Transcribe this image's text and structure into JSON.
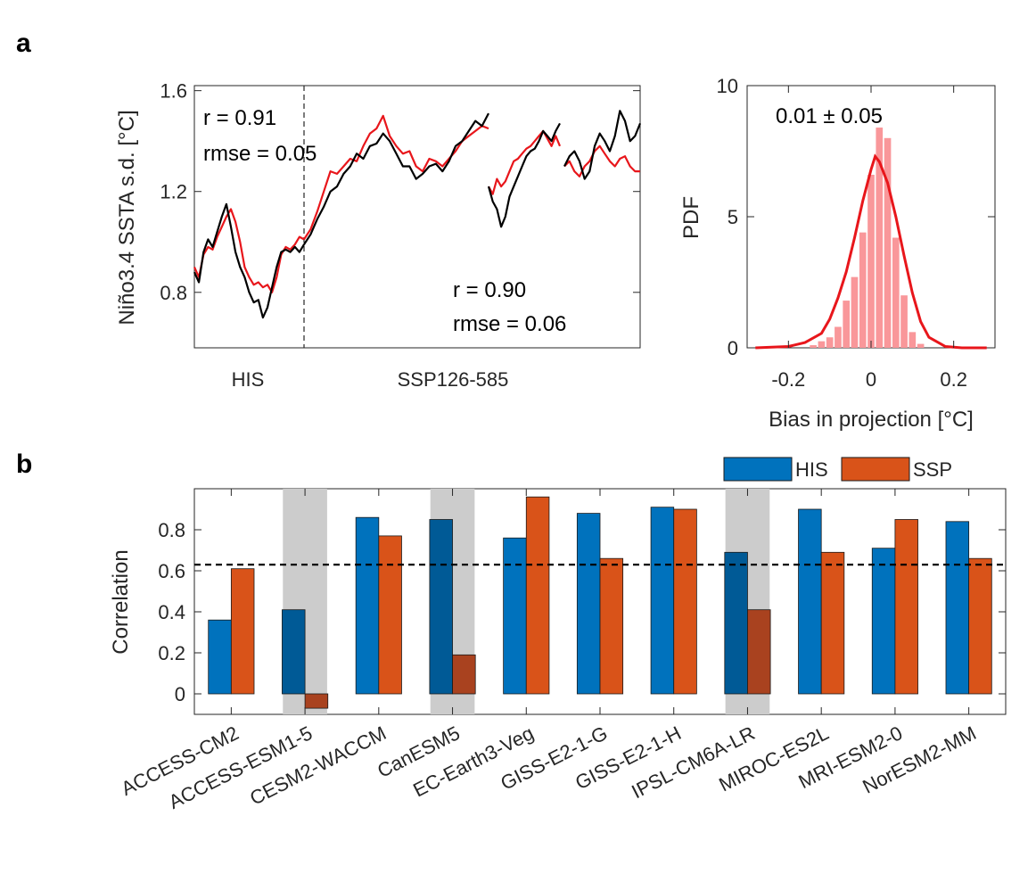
{
  "panel_a_label": "a",
  "panel_b_label": "b",
  "chart_data": [
    {
      "type": "line",
      "panel": "a-left",
      "ylabel": "Niño3.4 SSTA s.d. [°C]",
      "ylim": [
        0.58,
        1.62
      ],
      "yticks": [
        "0.8",
        "1.2",
        "1.6"
      ],
      "xcategory_labels": [
        "HIS",
        "SSP126-585"
      ],
      "annotations": {
        "his_r": "r = 0.91",
        "his_rmse": "rmse = 0.05",
        "ssp_r": "r = 0.90",
        "ssp_rmse": "rmse = 0.06"
      },
      "series": [
        {
          "color": "#e8161b",
          "segments": [
            [
              0.9,
              0.86,
              0.95,
              0.98,
              0.97,
              1.02,
              1.06,
              1.1,
              1.13,
              1.08,
              1.0,
              0.9,
              0.86,
              0.83,
              0.84,
              0.82,
              0.83,
              0.8,
              0.86,
              0.95,
              0.98,
              0.97,
              0.99,
              1.02,
              1.01
            ],
            [
              1.01,
              1.05,
              1.12,
              1.2,
              1.28,
              1.27,
              1.3,
              1.33,
              1.32,
              1.38,
              1.43,
              1.45,
              1.5,
              1.42,
              1.38,
              1.35,
              1.36,
              1.3,
              1.28,
              1.33,
              1.32,
              1.3,
              1.33,
              1.36,
              1.4,
              1.42,
              1.44,
              1.46,
              1.45
            ],
            [
              1.22,
              1.19,
              1.25,
              1.22,
              1.24,
              1.28,
              1.32,
              1.33,
              1.35,
              1.37,
              1.38,
              1.4,
              1.42,
              1.44,
              1.41,
              1.38,
              1.42,
              1.38
            ],
            [
              1.3,
              1.32,
              1.28,
              1.26,
              1.3,
              1.32,
              1.36,
              1.38,
              1.35,
              1.32,
              1.3,
              1.33,
              1.34,
              1.3,
              1.28,
              1.28
            ]
          ]
        },
        {
          "color": "#000000",
          "segments": [
            [
              0.88,
              0.84,
              0.96,
              1.01,
              0.98,
              1.04,
              1.1,
              1.15,
              1.06,
              0.96,
              0.9,
              0.86,
              0.8,
              0.76,
              0.77,
              0.7,
              0.74,
              0.82,
              0.9,
              0.96,
              0.97,
              0.96,
              0.98,
              0.96,
              0.99
            ],
            [
              0.99,
              1.03,
              1.09,
              1.14,
              1.2,
              1.22,
              1.27,
              1.3,
              1.35,
              1.33,
              1.38,
              1.39,
              1.43,
              1.4,
              1.35,
              1.3,
              1.3,
              1.25,
              1.27,
              1.3,
              1.31,
              1.28,
              1.32,
              1.38,
              1.4,
              1.44,
              1.48,
              1.46,
              1.51
            ],
            [
              1.22,
              1.16,
              1.13,
              1.06,
              1.1,
              1.18,
              1.22,
              1.26,
              1.3,
              1.34,
              1.36,
              1.37,
              1.4,
              1.44,
              1.42,
              1.4,
              1.44,
              1.47
            ],
            [
              1.3,
              1.34,
              1.36,
              1.32,
              1.25,
              1.28,
              1.38,
              1.43,
              1.4,
              1.36,
              1.42,
              1.52,
              1.48,
              1.4,
              1.42,
              1.47
            ]
          ]
        }
      ]
    },
    {
      "type": "bar",
      "panel": "a-right",
      "title": "0.01 ± 0.05",
      "xlabel": "Bias in projection [°C]",
      "ylabel": "PDF",
      "xlim": [
        -0.3,
        0.3
      ],
      "ylim": [
        0,
        10
      ],
      "xticks": [
        "-0.2",
        "0",
        "0.2"
      ],
      "yticks": [
        "0",
        "5",
        "10"
      ],
      "histogram": {
        "color": "#f9979a",
        "bin_centers": [
          -0.14,
          -0.12,
          -0.1,
          -0.08,
          -0.06,
          -0.04,
          -0.02,
          0.0,
          0.02,
          0.04,
          0.06,
          0.08,
          0.1,
          0.12
        ],
        "values": [
          0.1,
          0.25,
          0.4,
          0.8,
          1.8,
          2.7,
          4.4,
          6.6,
          8.4,
          8.0,
          4.2,
          2.0,
          0.6,
          0.15
        ]
      },
      "fit_curve": {
        "color": "#e8161b",
        "x": [
          -0.28,
          -0.2,
          -0.16,
          -0.12,
          -0.1,
          -0.08,
          -0.06,
          -0.04,
          -0.02,
          0.0,
          0.01,
          0.02,
          0.04,
          0.06,
          0.08,
          0.1,
          0.12,
          0.14,
          0.18,
          0.22,
          0.28
        ],
        "y": [
          0,
          0.05,
          0.2,
          0.55,
          1.1,
          1.9,
          2.9,
          4.2,
          5.6,
          6.8,
          7.3,
          7.1,
          6.3,
          5.0,
          3.5,
          2.1,
          1.0,
          0.4,
          0.05,
          0,
          0
        ]
      }
    },
    {
      "type": "bar",
      "panel": "b",
      "ylabel": "Correlation",
      "ylim": [
        -0.1,
        1.0
      ],
      "yticks": [
        "0",
        "0.2",
        "0.4",
        "0.6",
        "0.8"
      ],
      "reference_line": 0.63,
      "categories": [
        "ACCESS-CM2",
        "ACCESS-ESM1-5",
        "CESM2-WACCM",
        "CanESM5",
        "EC-Earth3-Veg",
        "GISS-E2-1-G",
        "GISS-E2-1-H",
        "IPSL-CM6A-LR",
        "MIROC-ES2L",
        "MRI-ESM2-0",
        "NorESM2-MM"
      ],
      "shaded_categories": [
        "ACCESS-ESM1-5",
        "CanESM5",
        "IPSL-CM6A-LR"
      ],
      "series": [
        {
          "name": "HIS",
          "color": "#0072bd",
          "shaded_color": "#005a96",
          "values": [
            0.36,
            0.41,
            0.86,
            0.85,
            0.76,
            0.88,
            0.91,
            0.69,
            0.9,
            0.71,
            0.84
          ]
        },
        {
          "name": "SSP",
          "color": "#d95319",
          "shaded_color": "#a9421f",
          "values": [
            0.61,
            -0.07,
            0.77,
            0.19,
            0.96,
            0.66,
            0.9,
            0.41,
            0.69,
            0.85,
            0.66
          ]
        }
      ],
      "legend_position": "top-right"
    }
  ]
}
